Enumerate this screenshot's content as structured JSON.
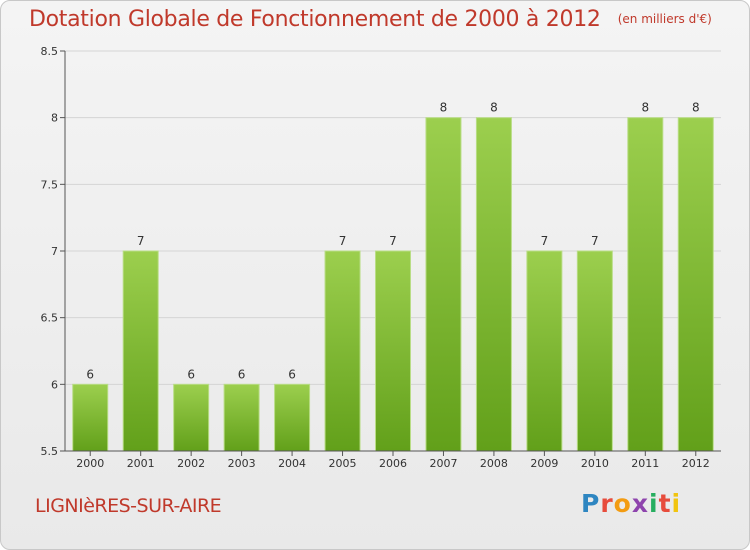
{
  "header": {
    "title": "Dotation Globale de Fonctionnement de 2000 à 2012",
    "subtitle": "(en milliers d'€)"
  },
  "footer": {
    "commune": "LIGNIèRES-SUR-AIRE",
    "logo": {
      "text": "Proxiti",
      "letters": [
        {
          "char": "P",
          "color": "#2e86c1"
        },
        {
          "char": "r",
          "color": "#e74c3c"
        },
        {
          "char": "o",
          "color": "#f39c12"
        },
        {
          "char": "x",
          "color": "#8e44ad"
        },
        {
          "char": "i",
          "color": "#27ae60"
        },
        {
          "char": "t",
          "color": "#e74c3c"
        },
        {
          "char": "i",
          "color": "#f1c40f"
        }
      ]
    }
  },
  "colors": {
    "title": "#c0392b",
    "bar_top": "#9ccf4e",
    "bar_bottom": "#62a01a",
    "axis": "#555555",
    "grid": "#d4d4d4"
  },
  "chart_data": {
    "type": "bar",
    "categories": [
      "2000",
      "2001",
      "2002",
      "2003",
      "2004",
      "2005",
      "2006",
      "2007",
      "2008",
      "2009",
      "2010",
      "2011",
      "2012"
    ],
    "values": [
      6,
      7,
      6,
      6,
      6,
      7,
      7,
      8,
      8,
      7,
      7,
      8,
      8
    ],
    "value_labels": [
      "6",
      "7",
      "6",
      "6",
      "6",
      "7",
      "7",
      "8",
      "8",
      "7",
      "7",
      "8",
      "8"
    ],
    "ylim": [
      5.5,
      8.5
    ],
    "yticks": [
      5.5,
      6,
      6.5,
      7,
      7.5,
      8,
      8.5
    ],
    "ytick_labels": [
      "5.5",
      "6",
      "6.5",
      "7",
      "7.5",
      "8",
      "8.5"
    ],
    "grid": true,
    "xlabel": "",
    "ylabel": ""
  }
}
